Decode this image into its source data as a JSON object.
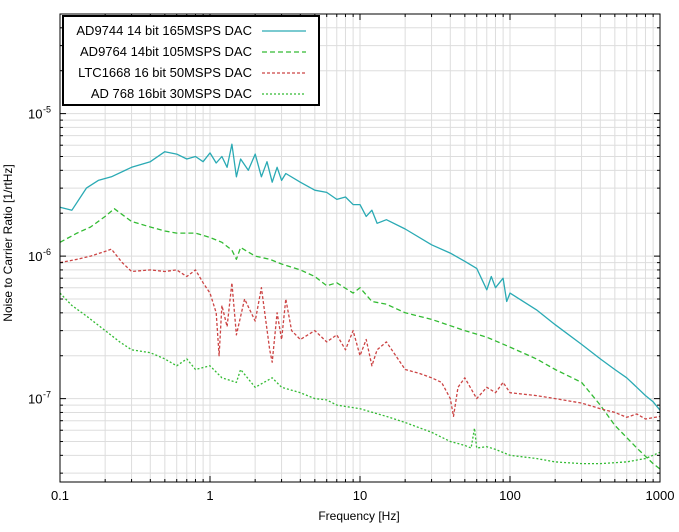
{
  "chart_data": {
    "type": "line",
    "xscale": "log",
    "yscale": "log",
    "xlim": [
      0.1,
      1000
    ],
    "ylim": [
      2.6e-08,
      5e-05
    ],
    "xlabel": "Frequency [Hz]",
    "ylabel": "Noise to Carrier Ratio [1/rtHz]",
    "grid": true,
    "legend_position": "top-left",
    "x_ticks": [
      {
        "value": 0.1,
        "label": "0.1"
      },
      {
        "value": 1,
        "label": "1"
      },
      {
        "value": 10,
        "label": "10"
      },
      {
        "value": 100,
        "label": "100"
      },
      {
        "value": 1000,
        "label": "1000"
      }
    ],
    "y_ticks": [
      {
        "value": 1e-07,
        "mantissa": "10",
        "exponent": "-7"
      },
      {
        "value": 1e-06,
        "mantissa": "10",
        "exponent": "-6"
      },
      {
        "value": 1e-05,
        "mantissa": "10",
        "exponent": "-5"
      }
    ],
    "series": [
      {
        "name": "AD9744 14 bit 165MSPS DAC",
        "color": "#2aaab4",
        "dash": "",
        "points": [
          [
            0.1,
            2.2e-06
          ],
          [
            0.12,
            2.1e-06
          ],
          [
            0.15,
            3e-06
          ],
          [
            0.18,
            3.4e-06
          ],
          [
            0.22,
            3.6e-06
          ],
          [
            0.3,
            4.2e-06
          ],
          [
            0.4,
            4.6e-06
          ],
          [
            0.5,
            5.4e-06
          ],
          [
            0.6,
            5.2e-06
          ],
          [
            0.7,
            4.8e-06
          ],
          [
            0.8,
            5e-06
          ],
          [
            0.9,
            4.6e-06
          ],
          [
            1.0,
            5.3e-06
          ],
          [
            1.1,
            4.5e-06
          ],
          [
            1.2,
            5e-06
          ],
          [
            1.3,
            4.2e-06
          ],
          [
            1.4,
            6.1e-06
          ],
          [
            1.5,
            3.6e-06
          ],
          [
            1.6,
            4.8e-06
          ],
          [
            1.8,
            4e-06
          ],
          [
            2.0,
            5.2e-06
          ],
          [
            2.2,
            3.6e-06
          ],
          [
            2.4,
            4.6e-06
          ],
          [
            2.6,
            3.3e-06
          ],
          [
            2.8,
            4.2e-06
          ],
          [
            3.0,
            3.4e-06
          ],
          [
            3.2,
            3.8e-06
          ],
          [
            4.0,
            3.3e-06
          ],
          [
            5.0,
            2.9e-06
          ],
          [
            6.0,
            2.8e-06
          ],
          [
            7.0,
            2.5e-06
          ],
          [
            8.0,
            2.6e-06
          ],
          [
            9.0,
            2.3e-06
          ],
          [
            10,
            2.3e-06
          ],
          [
            11,
            1.9e-06
          ],
          [
            12,
            2.1e-06
          ],
          [
            13,
            1.7e-06
          ],
          [
            15,
            1.8e-06
          ],
          [
            20,
            1.55e-06
          ],
          [
            30,
            1.2e-06
          ],
          [
            40,
            1.05e-06
          ],
          [
            50,
            9.2e-07
          ],
          [
            60,
            8.2e-07
          ],
          [
            70,
            5.8e-07
          ],
          [
            75,
            7.2e-07
          ],
          [
            80,
            6e-07
          ],
          [
            90,
            7e-07
          ],
          [
            95,
            4.8e-07
          ],
          [
            100,
            5.5e-07
          ],
          [
            150,
            4.2e-07
          ],
          [
            200,
            3.3e-07
          ],
          [
            300,
            2.4e-07
          ],
          [
            400,
            1.9e-07
          ],
          [
            500,
            1.6e-07
          ],
          [
            600,
            1.4e-07
          ],
          [
            700,
            1.2e-07
          ],
          [
            800,
            1.05e-07
          ],
          [
            900,
            9.5e-08
          ],
          [
            1000,
            8.3e-08
          ]
        ]
      },
      {
        "name": "AD9764 14bit 105MSPS DAC",
        "color": "#33bb33",
        "dash": "5,3",
        "points": [
          [
            0.1,
            1.25e-06
          ],
          [
            0.13,
            1.45e-06
          ],
          [
            0.16,
            1.6e-06
          ],
          [
            0.2,
            1.9e-06
          ],
          [
            0.23,
            2.15e-06
          ],
          [
            0.3,
            1.75e-06
          ],
          [
            0.4,
            1.6e-06
          ],
          [
            0.5,
            1.5e-06
          ],
          [
            0.6,
            1.45e-06
          ],
          [
            0.8,
            1.45e-06
          ],
          [
            1.0,
            1.35e-06
          ],
          [
            1.2,
            1.25e-06
          ],
          [
            1.4,
            1.1e-06
          ],
          [
            1.5,
            9.5e-07
          ],
          [
            1.6,
            1.15e-06
          ],
          [
            2.0,
            1e-06
          ],
          [
            2.5,
            9.5e-07
          ],
          [
            3.0,
            8.8e-07
          ],
          [
            4.0,
            8e-07
          ],
          [
            5.0,
            7.2e-07
          ],
          [
            6.0,
            6.2e-07
          ],
          [
            7.0,
            6.5e-07
          ],
          [
            9.0,
            5.5e-07
          ],
          [
            10,
            6e-07
          ],
          [
            12,
            4.8e-07
          ],
          [
            15,
            4.6e-07
          ],
          [
            20,
            4e-07
          ],
          [
            30,
            3.6e-07
          ],
          [
            50,
            3e-07
          ],
          [
            70,
            2.7e-07
          ],
          [
            100,
            2.3e-07
          ],
          [
            150,
            1.9e-07
          ],
          [
            200,
            1.6e-07
          ],
          [
            300,
            1.3e-07
          ],
          [
            400,
            9e-08
          ],
          [
            500,
            6.5e-08
          ],
          [
            700,
            4.5e-08
          ],
          [
            900,
            3.5e-08
          ],
          [
            1000,
            3.2e-08
          ]
        ]
      },
      {
        "name": "LTC1668 16 bit 50MSPS DAC",
        "color": "#cc4444",
        "dash": "3,2",
        "points": [
          [
            0.1,
            9e-07
          ],
          [
            0.13,
            9.5e-07
          ],
          [
            0.16,
            1e-06
          ],
          [
            0.2,
            1.08e-06
          ],
          [
            0.22,
            1.12e-06
          ],
          [
            0.26,
            9e-07
          ],
          [
            0.3,
            7.8e-07
          ],
          [
            0.4,
            8e-07
          ],
          [
            0.5,
            7.8e-07
          ],
          [
            0.6,
            8e-07
          ],
          [
            0.7,
            7.2e-07
          ],
          [
            0.8,
            8e-07
          ],
          [
            0.9,
            6.5e-07
          ],
          [
            1.0,
            5.5e-07
          ],
          [
            1.1,
            4e-07
          ],
          [
            1.15,
            2e-07
          ],
          [
            1.2,
            4.5e-07
          ],
          [
            1.3,
            3.2e-07
          ],
          [
            1.4,
            6.5e-07
          ],
          [
            1.5,
            2.8e-07
          ],
          [
            1.7,
            5e-07
          ],
          [
            2.0,
            3.5e-07
          ],
          [
            2.2,
            6e-07
          ],
          [
            2.5,
            2.2e-07
          ],
          [
            2.6,
            1.8e-07
          ],
          [
            2.8,
            4e-07
          ],
          [
            3.0,
            2.6e-07
          ],
          [
            3.2,
            5e-07
          ],
          [
            3.5,
            3e-07
          ],
          [
            4.0,
            2.6e-07
          ],
          [
            5.0,
            3e-07
          ],
          [
            6.0,
            2.5e-07
          ],
          [
            7.0,
            2.8e-07
          ],
          [
            8.0,
            2.2e-07
          ],
          [
            9.0,
            3e-07
          ],
          [
            10,
            2e-07
          ],
          [
            11,
            2.6e-07
          ],
          [
            12,
            1.7e-07
          ],
          [
            13,
            2.2e-07
          ],
          [
            15,
            2.5e-07
          ],
          [
            20,
            1.6e-07
          ],
          [
            25,
            1.5e-07
          ],
          [
            30,
            1.4e-07
          ],
          [
            35,
            1.3e-07
          ],
          [
            40,
            1e-07
          ],
          [
            42,
            7.5e-08
          ],
          [
            45,
            1.2e-07
          ],
          [
            50,
            1.4e-07
          ],
          [
            60,
            1e-07
          ],
          [
            70,
            1.2e-07
          ],
          [
            80,
            1.1e-07
          ],
          [
            90,
            1.3e-07
          ],
          [
            100,
            1.1e-07
          ],
          [
            150,
            1.05e-07
          ],
          [
            200,
            1e-07
          ],
          [
            300,
            9.3e-08
          ],
          [
            400,
            8.5e-08
          ],
          [
            500,
            8e-08
          ],
          [
            600,
            7.4e-08
          ],
          [
            700,
            7.8e-08
          ],
          [
            800,
            7.2e-08
          ],
          [
            1000,
            7.5e-08
          ]
        ]
      },
      {
        "name": "AD 768 16bit 30MSPS DAC",
        "color": "#33bb33",
        "dash": "2,2",
        "points": [
          [
            0.1,
            5.5e-07
          ],
          [
            0.12,
            4.5e-07
          ],
          [
            0.15,
            3.8e-07
          ],
          [
            0.2,
            3e-07
          ],
          [
            0.25,
            2.5e-07
          ],
          [
            0.3,
            2.2e-07
          ],
          [
            0.4,
            2.1e-07
          ],
          [
            0.5,
            1.9e-07
          ],
          [
            0.6,
            1.7e-07
          ],
          [
            0.7,
            1.9e-07
          ],
          [
            0.8,
            1.6e-07
          ],
          [
            1.0,
            1.7e-07
          ],
          [
            1.2,
            1.4e-07
          ],
          [
            1.5,
            1.3e-07
          ],
          [
            1.6,
            1.6e-07
          ],
          [
            2.0,
            1.2e-07
          ],
          [
            2.6,
            1.4e-07
          ],
          [
            3.0,
            1.2e-07
          ],
          [
            4.0,
            1.1e-07
          ],
          [
            5.0,
            1e-07
          ],
          [
            6.0,
            9.8e-08
          ],
          [
            7.0,
            9e-08
          ],
          [
            10,
            8.5e-08
          ],
          [
            15,
            7.5e-08
          ],
          [
            20,
            6.8e-08
          ],
          [
            30,
            5.8e-08
          ],
          [
            40,
            5e-08
          ],
          [
            50,
            4.7e-08
          ],
          [
            55,
            4.5e-08
          ],
          [
            58,
            6.2e-08
          ],
          [
            60,
            4.5e-08
          ],
          [
            70,
            4.6e-08
          ],
          [
            80,
            4.4e-08
          ],
          [
            100,
            4e-08
          ],
          [
            150,
            3.8e-08
          ],
          [
            200,
            3.6e-08
          ],
          [
            300,
            3.5e-08
          ],
          [
            400,
            3.5e-08
          ],
          [
            600,
            3.6e-08
          ],
          [
            800,
            3.8e-08
          ],
          [
            1000,
            4.2e-08
          ]
        ]
      }
    ]
  }
}
